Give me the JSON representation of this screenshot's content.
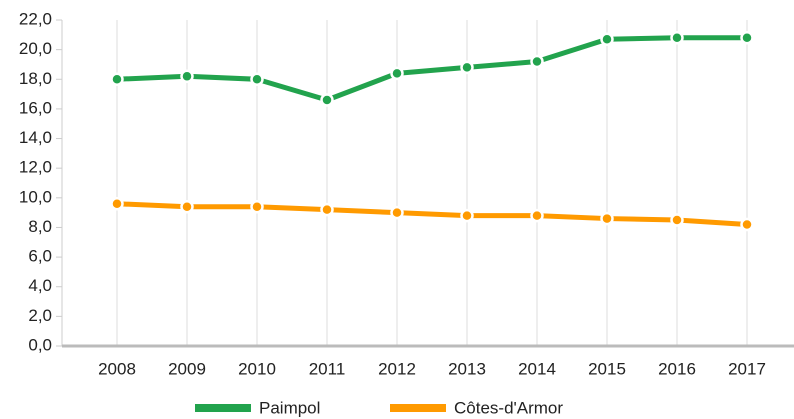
{
  "chart_data": {
    "type": "line",
    "categories": [
      "2008",
      "2009",
      "2010",
      "2011",
      "2012",
      "2013",
      "2014",
      "2015",
      "2016",
      "2017"
    ],
    "series": [
      {
        "name": "Paimpol",
        "color": "#22a34d",
        "values": [
          18.0,
          18.2,
          18.0,
          16.6,
          18.4,
          18.8,
          19.2,
          20.7,
          20.8,
          20.8
        ]
      },
      {
        "name": "Côtes-d'Armor",
        "color": "#ff9a00",
        "values": [
          9.6,
          9.4,
          9.4,
          9.2,
          9.0,
          8.8,
          8.8,
          8.6,
          8.5,
          8.2
        ]
      }
    ],
    "ylim": [
      0,
      22
    ],
    "yticks": [
      {
        "value": 0,
        "label": "0,0"
      },
      {
        "value": 2,
        "label": "2,0"
      },
      {
        "value": 4,
        "label": "4,0"
      },
      {
        "value": 6,
        "label": "6,0"
      },
      {
        "value": 8,
        "label": "8,0"
      },
      {
        "value": 10,
        "label": "10,0"
      },
      {
        "value": 12,
        "label": "12,0"
      },
      {
        "value": 14,
        "label": "14,0"
      },
      {
        "value": 16,
        "label": "16,0"
      },
      {
        "value": 18,
        "label": "18,0"
      },
      {
        "value": 20,
        "label": "20,0"
      },
      {
        "value": 22,
        "label": "22,0"
      }
    ],
    "grid": true,
    "legend": "bottom"
  }
}
